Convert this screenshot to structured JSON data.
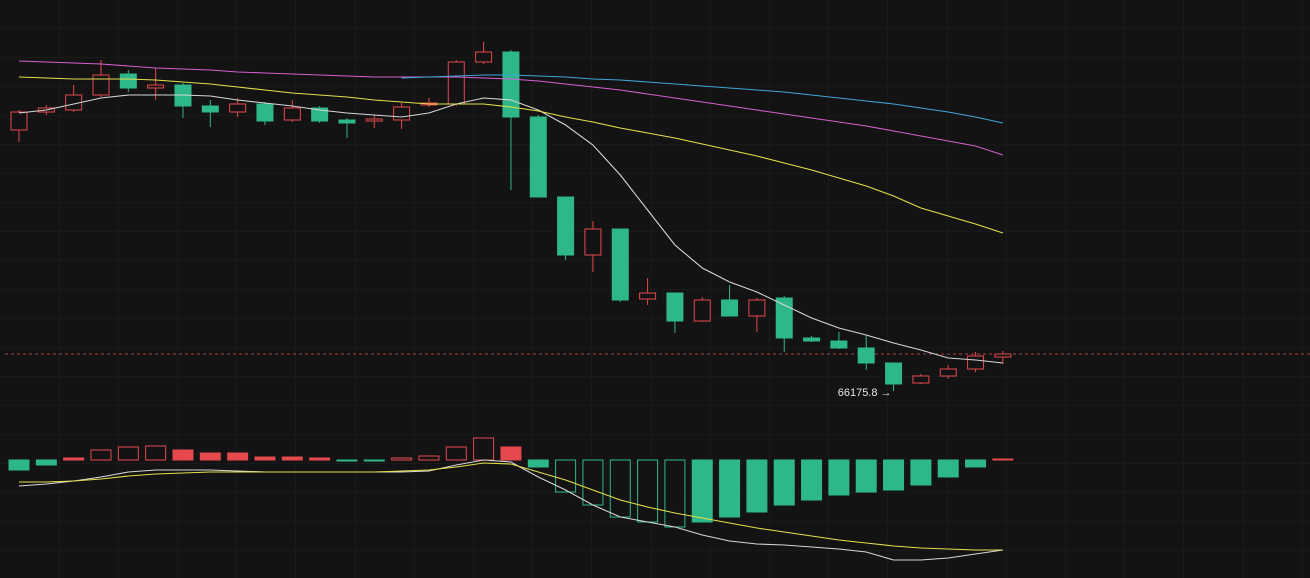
{
  "chart_data": [
    {
      "type": "candlestick",
      "open": [
        68785.8,
        68965.8,
        68985.8,
        69135.8,
        69345.8,
        69205.8,
        69235.8,
        69025.8,
        68965.8,
        69045.8,
        68885.8,
        69005.8,
        68885.8,
        68875.8,
        68885.8,
        69035.8,
        69045.8,
        69465.8,
        69565.8,
        68915.8,
        68115.8,
        67535.8,
        67795.8,
        67095.8,
        67155.8,
        66875.8,
        67085.8,
        66925.8,
        67105.8,
        66705.8,
        66675.8,
        66605.8,
        66455.8,
        66255.8,
        66325.8,
        66395.8,
        66515.8
      ],
      "high": [
        68985.8,
        69035.8,
        69235.8,
        69485.8,
        69385.8,
        69405.8,
        69255.8,
        69085.8,
        69105.8,
        69065.8,
        69085.8,
        69025.8,
        68905.8,
        68935.8,
        69055.8,
        69105.8,
        69485.8,
        69665.8,
        69585.8,
        68935.8,
        68115.8,
        67875.8,
        67795.8,
        67305.8,
        67155.8,
        67115.8,
        67235.8,
        67105.8,
        67125.8,
        66725.8,
        66765.8,
        66735.8,
        66455.8,
        66345.8,
        66435.8,
        66565.8,
        66575.8
      ],
      "low": [
        68665.8,
        68935.8,
        68965.8,
        69115.8,
        69165.8,
        69085.8,
        68905.8,
        68815.8,
        68915.8,
        68835.8,
        68865.8,
        68855.8,
        68705.8,
        68805.8,
        68795.8,
        69015.8,
        69025.8,
        69445.8,
        68185.8,
        68115.8,
        67485.8,
        67365.8,
        67065.8,
        67035.8,
        66755.8,
        66865.8,
        66925.8,
        66765.8,
        66565.8,
        66665.8,
        66595.8,
        66385.8,
        66175.8,
        66245.8,
        66295.8,
        66365.8,
        66445.8
      ],
      "close": [
        68965.8,
        69005.8,
        69135.8,
        69335.8,
        69205.8,
        69235.8,
        69025.8,
        68965.8,
        69045.8,
        68875.8,
        69005.8,
        68875.8,
        68855.8,
        68895.8,
        69015.8,
        69055.8,
        69465.8,
        69565.8,
        68915.8,
        68115.8,
        67535.8,
        67795.8,
        67085.8,
        67155.8,
        66875.8,
        67085.8,
        66925.8,
        67085.8,
        66705.8,
        66675.8,
        66605.8,
        66455.8,
        66245.8,
        66325.8,
        66395.8,
        66525.8,
        66545.8
      ],
      "up_color": "#e5484d",
      "down_color": "#2eb88a",
      "ylim": [
        65785.8,
        70085.8
      ],
      "last_price": 66545.8,
      "series": [
        {
          "color": "#d6d6d6",
          "values": [
            68956,
            68986,
            69046,
            69106,
            69136,
            69136,
            69136,
            69126,
            69086,
            69056,
            69026,
            68986,
            68956,
            68936,
            68916,
            68956,
            69046,
            69106,
            69086,
            68986,
            68836,
            68636,
            68336,
            67986,
            67636,
            67406,
            67266,
            67166,
            67036,
            66906,
            66806,
            66736,
            66656,
            66586,
            66506,
            66486,
            66456
          ]
        },
        {
          "color": "#e4e04a",
          "values": [
            69316,
            69306,
            69296,
            69296,
            69296,
            69286,
            69266,
            69246,
            69216,
            69186,
            69156,
            69136,
            69116,
            69086,
            69066,
            69046,
            69046,
            69046,
            69016,
            68976,
            68916,
            68866,
            68806,
            68756,
            68706,
            68646,
            68586,
            68526,
            68456,
            68386,
            68306,
            68226,
            68126,
            68006,
            67926,
            67846,
            67756
          ]
        },
        {
          "color": "#d55fcf",
          "values": [
            69476,
            69466,
            69456,
            69446,
            69426,
            69406,
            69396,
            69386,
            69366,
            69356,
            69346,
            69336,
            69326,
            69316,
            69316,
            69316,
            69316,
            69306,
            69296,
            69276,
            69246,
            69216,
            69186,
            69146,
            69106,
            69066,
            69026,
            68986,
            68946,
            68906,
            68866,
            68826,
            68776,
            68726,
            68676,
            68626,
            68536
          ]
        },
        {
          "color": "#3ea6d8",
          "values": [
            null,
            null,
            null,
            null,
            null,
            null,
            null,
            null,
            null,
            null,
            null,
            null,
            null,
            null,
            69306,
            69316,
            69326,
            69336,
            69336,
            69326,
            69316,
            69296,
            69286,
            69266,
            69246,
            69226,
            69206,
            69186,
            69166,
            69136,
            69106,
            69076,
            69046,
            69006,
            68966,
            68916,
            68856
          ]
        }
      ],
      "annotations": [
        {
          "text": "66175.8 →"
        }
      ]
    },
    {
      "type": "bar",
      "values": [
        -100,
        -50,
        20,
        100,
        130,
        140,
        100,
        70,
        70,
        30,
        30,
        20,
        -10,
        -10,
        20,
        40,
        130,
        220,
        130,
        -70,
        -320,
        -450,
        -570,
        -620,
        -670,
        -620,
        -570,
        -520,
        -450,
        -400,
        -350,
        -320,
        -300,
        -250,
        -170,
        -70,
        10
      ],
      "up_color": "#e5484d",
      "down_color": "#2eb88a",
      "ylim": [
        -1180,
        300
      ],
      "series": [
        {
          "color": "#d6d6d6",
          "values": [
            -260,
            -240,
            -210,
            -170,
            -120,
            -100,
            -100,
            -100,
            -110,
            -120,
            -120,
            -120,
            -120,
            -120,
            -120,
            -110,
            -50,
            0,
            -20,
            -170,
            -300,
            -450,
            -570,
            -620,
            -670,
            -750,
            -810,
            -840,
            -850,
            -870,
            -890,
            -920,
            -1000,
            -1000,
            -980,
            -940,
            -900
          ]
        },
        {
          "color": "#e4e04a",
          "values": [
            -220,
            -220,
            -210,
            -190,
            -160,
            -140,
            -130,
            -120,
            -120,
            -120,
            -120,
            -120,
            -120,
            -120,
            -110,
            -100,
            -70,
            -30,
            -40,
            -120,
            -200,
            -300,
            -400,
            -470,
            -530,
            -580,
            -630,
            -680,
            -720,
            -760,
            -800,
            -830,
            -860,
            -880,
            -890,
            -900,
            -900
          ]
        }
      ]
    }
  ]
}
